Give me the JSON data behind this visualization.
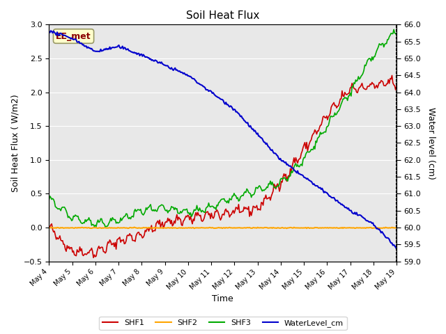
{
  "title": "Soil Heat Flux",
  "ylabel_left": "Soil Heat Flux ( W/m2)",
  "ylabel_right": "Water level (cm)",
  "xlabel": "Time",
  "ylim_left": [
    -0.5,
    3.0
  ],
  "ylim_right": [
    59.0,
    66.0
  ],
  "annotation_text": "EE_met",
  "bg_color": "#e8e8e8",
  "shf1_color": "#cc0000",
  "shf2_color": "#ffa500",
  "shf3_color": "#00aa00",
  "wl_color": "#0000cc",
  "legend_entries": [
    "SHF1",
    "SHF2",
    "SHF3",
    "WaterLevel_cm"
  ],
  "xtick_labels": [
    "May 4",
    "May 5",
    "May 6",
    "May 7",
    "May 8",
    "May 9",
    "May 10",
    "May 11",
    "May 12",
    "May 13",
    "May 14",
    "May 15",
    "May 16",
    "May 17",
    "May 18",
    "May 19"
  ],
  "yticks_left": [
    -0.5,
    0.0,
    0.5,
    1.0,
    1.5,
    2.0,
    2.5,
    3.0
  ],
  "yticks_right": [
    59.0,
    59.5,
    60.0,
    60.5,
    61.0,
    61.5,
    62.0,
    62.5,
    63.0,
    63.5,
    64.0,
    64.5,
    65.0,
    65.5,
    66.0
  ]
}
